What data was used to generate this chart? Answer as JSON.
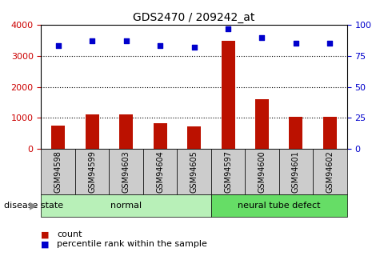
{
  "title": "GDS2470 / 209242_at",
  "samples": [
    "GSM94598",
    "GSM94599",
    "GSM94603",
    "GSM94604",
    "GSM94605",
    "GSM94597",
    "GSM94600",
    "GSM94601",
    "GSM94602"
  ],
  "counts": [
    750,
    1120,
    1120,
    820,
    730,
    3480,
    1600,
    1040,
    1040
  ],
  "percentiles": [
    83,
    87,
    87,
    83,
    82,
    97,
    90,
    85,
    85
  ],
  "groups": [
    {
      "label": "normal",
      "start": 0,
      "end": 5,
      "color": "#b8f0b8"
    },
    {
      "label": "neural tube defect",
      "start": 5,
      "end": 9,
      "color": "#66dd66"
    }
  ],
  "left_axis_color": "#cc0000",
  "right_axis_color": "#0000cc",
  "bar_color": "#bb1100",
  "dot_color": "#0000cc",
  "ylim_left": [
    0,
    4000
  ],
  "ylim_right": [
    0,
    100
  ],
  "yticks_left": [
    0,
    1000,
    2000,
    3000,
    4000
  ],
  "yticks_right": [
    0,
    25,
    50,
    75,
    100
  ],
  "grid_values": [
    1000,
    2000,
    3000
  ],
  "legend_count_label": "count",
  "legend_pct_label": "percentile rank within the sample",
  "disease_state_label": "disease state",
  "tick_label_fontsize": 7,
  "title_fontsize": 10,
  "bar_width": 0.4,
  "tick_box_color": "#cccccc"
}
